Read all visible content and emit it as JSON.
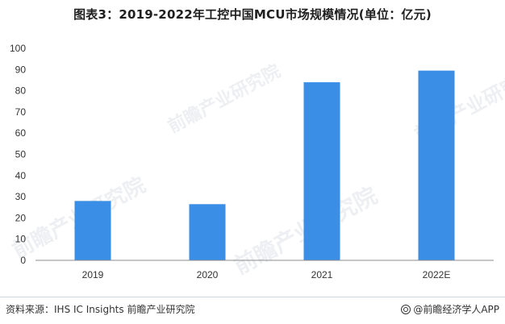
{
  "title": "图表3：2019-2022年工控中国MCU市场规模情况(单位：亿元)",
  "footer": {
    "source": "资料来源：IHS IC Insights 前瞻产业研究院",
    "brand": "@前瞻经济学人APP"
  },
  "watermark_text": "前瞻产业研究院",
  "colors": {
    "bar": "#3a8ee6",
    "axis": "#555555"
  },
  "chart_data": {
    "type": "bar",
    "title": "图表3：2019-2022年工控中国MCU市场规模情况(单位：亿元)",
    "categories": [
      "2019",
      "2020",
      "2021",
      "2022E"
    ],
    "values": [
      28,
      26.5,
      84,
      89.5
    ],
    "ylim": [
      0,
      100
    ],
    "yticks": [
      0,
      10,
      20,
      30,
      40,
      50,
      60,
      70,
      80,
      90,
      100
    ],
    "xlabel": "",
    "ylabel": "",
    "grid": false,
    "legend": "none"
  }
}
